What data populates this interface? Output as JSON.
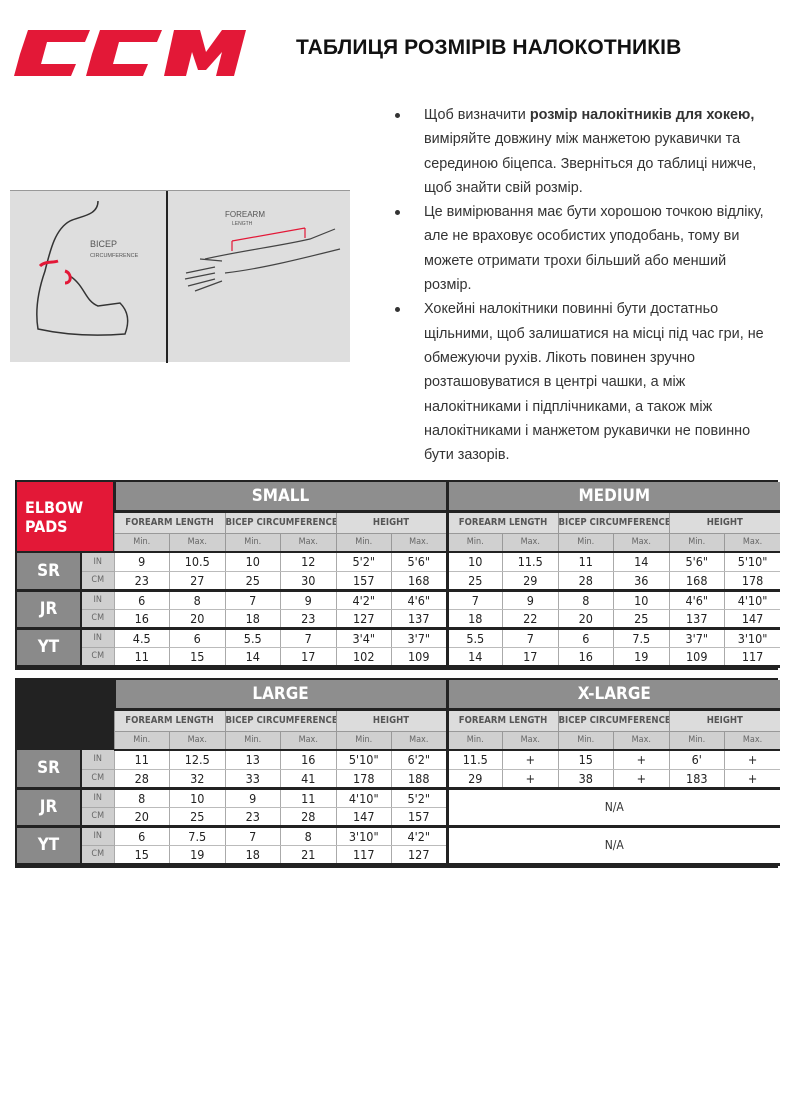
{
  "header": {
    "logo_text": "CCM",
    "title": "ТАБЛИЦЯ РОЗМІРІВ НАЛОКОТНИКІВ",
    "brand_color": "#e31837"
  },
  "illustration": {
    "bicep_label": "BICEP",
    "bicep_sub": "CIRCUMFERENCE",
    "forearm_label": "FOREARM",
    "forearm_sub": "LENGTH"
  },
  "instructions": [
    {
      "pre": "Щоб визначити ",
      "bold": "розмір налокітників для хокею,",
      "post": " виміряйте довжину між манжетою рукавички та серединою біцепса. Зверніться до таблиці нижче, щоб знайти свій розмір."
    },
    {
      "pre": "Це вимірювання має бути хорошою точкою відліку, але не враховує особистих уподобань, тому ви можете отримати трохи більший або менший розмір.",
      "bold": "",
      "post": ""
    },
    {
      "pre": "Хокейні налокітники повинні бути достатньо щільними, щоб залишатися на місці під час гри, не обмежуючи рухів. Лікоть повинен зручно розташовуватися в центрі чашки, а між налокітниками і підплічниками, а також між налокітниками і манжетом рукавички не повинно бути зазорів.",
      "bold": "",
      "post": ""
    }
  ],
  "table": {
    "corner": [
      "ELBOW",
      "PADS"
    ],
    "groups": [
      "FOREARM LENGTH",
      "BICEP CIRCUMFERENCE",
      "HEIGHT"
    ],
    "minmax": [
      "Min.",
      "Max."
    ],
    "categories": [
      "SR",
      "JR",
      "YT"
    ],
    "units": [
      "IN",
      "CM"
    ],
    "na_label": "N/A",
    "blocks": [
      [
        {
          "size": "SMALL",
          "rows": {
            "SR": {
              "IN": [
                "9",
                "10.5",
                "10",
                "12",
                "5'2\"",
                "5'6\""
              ],
              "CM": [
                "23",
                "27",
                "25",
                "30",
                "157",
                "168"
              ]
            },
            "JR": {
              "IN": [
                "6",
                "8",
                "7",
                "9",
                "4'2\"",
                "4'6\""
              ],
              "CM": [
                "16",
                "20",
                "18",
                "23",
                "127",
                "137"
              ]
            },
            "YT": {
              "IN": [
                "4.5",
                "6",
                "5.5",
                "7",
                "3'4\"",
                "3'7\""
              ],
              "CM": [
                "11",
                "15",
                "14",
                "17",
                "102",
                "109"
              ]
            }
          }
        },
        {
          "size": "MEDIUM",
          "rows": {
            "SR": {
              "IN": [
                "10",
                "11.5",
                "11",
                "14",
                "5'6\"",
                "5'10\""
              ],
              "CM": [
                "25",
                "29",
                "28",
                "36",
                "168",
                "178"
              ]
            },
            "JR": {
              "IN": [
                "7",
                "9",
                "8",
                "10",
                "4'6\"",
                "4'10\""
              ],
              "CM": [
                "18",
                "22",
                "20",
                "25",
                "137",
                "147"
              ]
            },
            "YT": {
              "IN": [
                "5.5",
                "7",
                "6",
                "7.5",
                "3'7\"",
                "3'10\""
              ],
              "CM": [
                "14",
                "17",
                "16",
                "19",
                "109",
                "117"
              ]
            }
          }
        }
      ],
      [
        {
          "size": "LARGE",
          "rows": {
            "SR": {
              "IN": [
                "11",
                "12.5",
                "13",
                "16",
                "5'10\"",
                "6'2\""
              ],
              "CM": [
                "28",
                "32",
                "33",
                "41",
                "178",
                "188"
              ]
            },
            "JR": {
              "IN": [
                "8",
                "10",
                "9",
                "11",
                "4'10\"",
                "5'2\""
              ],
              "CM": [
                "20",
                "25",
                "23",
                "28",
                "147",
                "157"
              ]
            },
            "YT": {
              "IN": [
                "6",
                "7.5",
                "7",
                "8",
                "3'10\"",
                "4'2\""
              ],
              "CM": [
                "15",
                "19",
                "18",
                "21",
                "117",
                "127"
              ]
            }
          }
        },
        {
          "size": "X-LARGE",
          "rows": {
            "SR": {
              "IN": [
                "11.5",
                "+",
                "15",
                "+",
                "6'",
                "+"
              ],
              "CM": [
                "29",
                "+",
                "38",
                "+",
                "183",
                "+"
              ]
            },
            "JR": null,
            "YT": null
          }
        }
      ]
    ]
  }
}
